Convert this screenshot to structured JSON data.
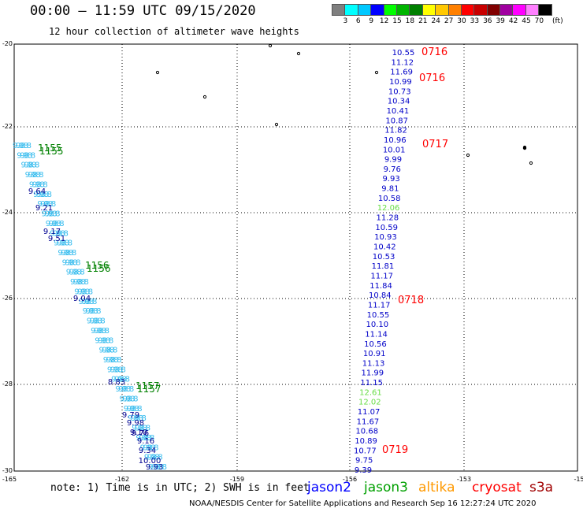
{
  "header": {
    "title": "00:00 – 11:59 UTC 09/15/2020",
    "subtitle": "12 hour collection of altimeter wave heights"
  },
  "legend": {
    "unit_label": "(ft)",
    "swatches": [
      {
        "color": "#7f7f7f",
        "label": "3"
      },
      {
        "color": "#00ffff",
        "label": "6"
      },
      {
        "color": "#00c8ff",
        "label": "9"
      },
      {
        "color": "#0000ff",
        "label": "12"
      },
      {
        "color": "#00ff00",
        "label": "15"
      },
      {
        "color": "#00b400",
        "label": "18"
      },
      {
        "color": "#008000",
        "label": "21"
      },
      {
        "color": "#ffff00",
        "label": "24"
      },
      {
        "color": "#ffc800",
        "label": "27"
      },
      {
        "color": "#ff8000",
        "label": "30"
      },
      {
        "color": "#ff0000",
        "label": "33"
      },
      {
        "color": "#c80000",
        "label": "36"
      },
      {
        "color": "#800000",
        "label": "39"
      },
      {
        "color": "#a000a0",
        "label": "42"
      },
      {
        "color": "#ff00ff",
        "label": "45"
      },
      {
        "color": "#ff80ff",
        "label": "70"
      },
      {
        "color": "#000000",
        "label": ""
      }
    ]
  },
  "map": {
    "x_ticks": [
      "-165",
      "-162",
      "-159",
      "-156",
      "-153",
      "-15"
    ],
    "y_ticks": [
      "-20",
      "-22",
      "-24",
      "-26",
      "-28",
      "-30"
    ],
    "track_east": {
      "values": [
        {
          "v": "10.55",
          "c": "#0000c8"
        },
        {
          "v": "11.12",
          "c": "#0000c8"
        },
        {
          "v": "11.69",
          "c": "#0000c8"
        },
        {
          "v": "10.99",
          "c": "#0000c8"
        },
        {
          "v": "10.73",
          "c": "#0000c8"
        },
        {
          "v": "10.34",
          "c": "#0000c8"
        },
        {
          "v": "10.41",
          "c": "#0000c8"
        },
        {
          "v": "10.87",
          "c": "#0000c8"
        },
        {
          "v": "11.82",
          "c": "#0000c8"
        },
        {
          "v": "10.96",
          "c": "#0000c8"
        },
        {
          "v": "10.01",
          "c": "#0000c8"
        },
        {
          "v": "9.99",
          "c": "#0000c8"
        },
        {
          "v": "9.76",
          "c": "#0000c8"
        },
        {
          "v": "9.93",
          "c": "#0000c8"
        },
        {
          "v": "9.81",
          "c": "#0000c8"
        },
        {
          "v": "10.58",
          "c": "#0000c8"
        },
        {
          "v": "12.06",
          "c": "#66dd44"
        },
        {
          "v": "11.28",
          "c": "#0000c8"
        },
        {
          "v": "10.59",
          "c": "#0000c8"
        },
        {
          "v": "10.93",
          "c": "#0000c8"
        },
        {
          "v": "10.42",
          "c": "#0000c8"
        },
        {
          "v": "10.53",
          "c": "#0000c8"
        },
        {
          "v": "11.81",
          "c": "#0000c8"
        },
        {
          "v": "11.17",
          "c": "#0000c8"
        },
        {
          "v": "11.84",
          "c": "#0000c8"
        },
        {
          "v": "10.84",
          "c": "#0000c8"
        },
        {
          "v": "11.17",
          "c": "#0000c8"
        },
        {
          "v": "10.55",
          "c": "#0000c8"
        },
        {
          "v": "10.10",
          "c": "#0000c8"
        },
        {
          "v": "11.14",
          "c": "#0000c8"
        },
        {
          "v": "10.56",
          "c": "#0000c8"
        },
        {
          "v": "10.91",
          "c": "#0000c8"
        },
        {
          "v": "11.13",
          "c": "#0000c8"
        },
        {
          "v": "11.99",
          "c": "#0000c8"
        },
        {
          "v": "11.15",
          "c": "#0000c8"
        },
        {
          "v": "12.61",
          "c": "#66dd44"
        },
        {
          "v": "12.02",
          "c": "#66dd44"
        },
        {
          "v": "11.07",
          "c": "#0000c8"
        },
        {
          "v": "11.67",
          "c": "#0000c8"
        },
        {
          "v": "10.68",
          "c": "#0000c8"
        },
        {
          "v": "10.89",
          "c": "#0000c8"
        },
        {
          "v": "10.77",
          "c": "#0000c8"
        },
        {
          "v": "9.75",
          "c": "#0000c8"
        },
        {
          "v": "9.39",
          "c": "#0000c8"
        }
      ],
      "times": [
        "0716",
        "0716",
        "0717",
        "0718",
        "0719"
      ]
    },
    "track_west": {
      "times": [
        "1155",
        "1156",
        "1157"
      ],
      "values": [
        "9.64",
        "9.21",
        "9.17",
        "9.51",
        "9.04",
        "8.83",
        "9.79",
        "9.98",
        "9.10",
        "9.76",
        "9.16",
        "9.34",
        "10.00",
        "9.93"
      ]
    }
  },
  "footer": {
    "note": "note: 1) Time is in UTC; 2) SWH is in feet",
    "credit": "NOAA/NESDIS Center for Satellite Applications and Research   Sep 16 12:27:24 UTC 2020",
    "satellites": [
      {
        "name": "jason2",
        "color": "#0000ff"
      },
      {
        "name": "jason3",
        "color": "#00a000"
      },
      {
        "name": "altika",
        "color": "#ff9900"
      },
      {
        "name": "cryosat",
        "color": "#ff0000"
      },
      {
        "name": "s3a",
        "color": "#a00000"
      }
    ]
  }
}
